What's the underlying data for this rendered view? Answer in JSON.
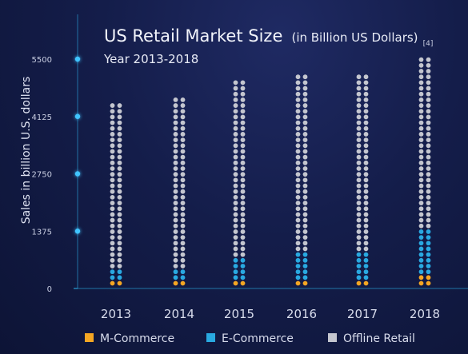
{
  "chart_data": {
    "type": "bar",
    "title": "US Retail Market Size",
    "title_paren": "(in Billion US Dollars)",
    "title_ref": "[4]",
    "subtitle": "Year 2013-2018",
    "ylabel": "Sales in billion U.S. dollars",
    "xlabel": "",
    "ylim": [
      0,
      5500
    ],
    "yticks": [
      "0",
      "1375",
      "2750",
      "4125",
      "5500"
    ],
    "ytick_values": [
      0,
      1375,
      2750,
      4125,
      5500
    ],
    "categories": [
      "2013",
      "2014",
      "2015",
      "2016",
      "2017",
      "2018"
    ],
    "stacked": true,
    "marker": "dot",
    "series": [
      {
        "name": "M-Commerce",
        "color": "#f5a623",
        "values": [
          75,
          90,
          110,
          130,
          150,
          300
        ]
      },
      {
        "name": "E-Commerce",
        "color": "#29a9e1",
        "values": [
          225,
          210,
          490,
          620,
          750,
          1050
        ]
      },
      {
        "name": "Offline Retail",
        "color": "#c4c6cf",
        "values": [
          3940,
          4120,
          4200,
          4300,
          4300,
          4150
        ]
      }
    ],
    "grid": false,
    "legend_position": "bottom"
  }
}
